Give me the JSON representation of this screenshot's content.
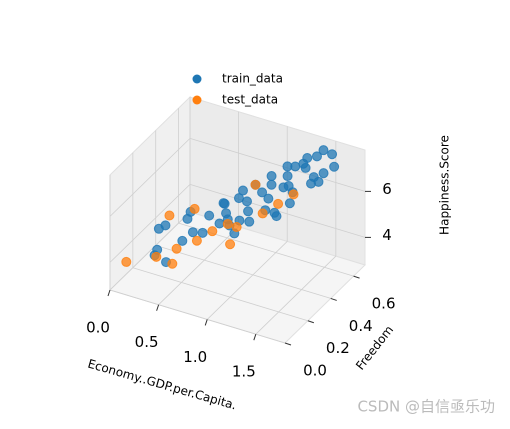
{
  "chart_data": {
    "type": "scatter3d",
    "xlabel": "Economy..GDP.per.Capita.",
    "ylabel": "Freedom",
    "zlabel": "Happiness.Score",
    "xlim": [
      0,
      1.8
    ],
    "ylim": [
      0,
      0.7
    ],
    "zlim": [
      2.8,
      7.8
    ],
    "xticks": [
      {
        "value": 0,
        "label": "0.0"
      },
      0.5,
      {
        "value": 1,
        "label": "1.0"
      },
      1.5
    ],
    "yticks": [
      {
        "value": 0,
        "label": "0.0"
      },
      0.2,
      0.4,
      0.6
    ],
    "zticks": [
      4,
      6
    ],
    "grid": true,
    "legend": "upper center",
    "series": [
      {
        "name": "train_data",
        "color": "#1f77b4",
        "x": [
          1.4,
          1.52,
          1.33,
          1.45,
          1.25,
          1.1,
          1.2,
          0.95,
          1.05,
          0.8,
          0.7,
          0.6,
          0.45,
          0.35,
          0.25,
          0.15,
          1.6,
          1.55,
          1.35,
          1.3,
          1.15,
          1.0,
          0.9,
          0.85,
          0.75,
          0.65,
          0.55,
          0.4,
          0.3,
          0.2,
          1.48,
          1.38,
          1.28,
          1.18,
          1.08,
          0.98,
          0.88,
          0.78,
          0.5,
          1.42,
          1.36,
          1.22,
          1.12,
          0.92,
          0.68,
          1.58,
          1.26,
          1.02,
          0.58,
          0.1
        ],
        "y": [
          0.62,
          0.65,
          0.58,
          0.55,
          0.5,
          0.45,
          0.6,
          0.4,
          0.52,
          0.35,
          0.42,
          0.3,
          0.25,
          0.38,
          0.2,
          0.3,
          0.6,
          0.55,
          0.45,
          0.62,
          0.38,
          0.48,
          0.28,
          0.55,
          0.32,
          0.45,
          0.4,
          0.15,
          0.45,
          0.22,
          0.5,
          0.4,
          0.35,
          0.55,
          0.3,
          0.58,
          0.45,
          0.5,
          0.3,
          0.66,
          0.3,
          0.48,
          0.6,
          0.35,
          0.55,
          0.48,
          0.62,
          0.22,
          0.5,
          0.4
        ],
        "z": [
          7.4,
          7.5,
          7.0,
          6.9,
          6.5,
          6.0,
          6.8,
          5.5,
          6.2,
          5.2,
          5.0,
          4.6,
          4.3,
          4.5,
          3.9,
          4.2,
          7.3,
          7.2,
          6.6,
          7.2,
          5.9,
          6.0,
          5.4,
          5.8,
          5.1,
          5.2,
          4.8,
          3.8,
          4.4,
          3.5,
          6.9,
          6.4,
          6.1,
          6.6,
          5.7,
          6.2,
          5.6,
          5.7,
          4.5,
          7.5,
          6.3,
          6.5,
          6.7,
          5.3,
          5.0,
          7.2,
          6.9,
          5.5,
          4.9,
          3.8
        ]
      },
      {
        "name": "test_data",
        "color": "#ff7f0e",
        "x": [
          0.05,
          0.3,
          0.45,
          0.6,
          0.8,
          0.95,
          1.1,
          1.2,
          1.3,
          0.7,
          0.5,
          0.2,
          1.0,
          0.85,
          0.4
        ],
        "y": [
          0.1,
          0.15,
          0.2,
          0.25,
          0.35,
          0.3,
          0.4,
          0.45,
          0.5,
          0.3,
          0.12,
          0.35,
          0.2,
          0.55,
          0.4
        ],
        "z": [
          3.6,
          3.9,
          4.2,
          4.5,
          5.0,
          5.3,
          5.6,
          5.9,
          6.2,
          4.8,
          4.0,
          4.6,
          5.1,
          5.8,
          4.9
        ]
      }
    ]
  },
  "watermark": "CSDN @自信亟乐功"
}
